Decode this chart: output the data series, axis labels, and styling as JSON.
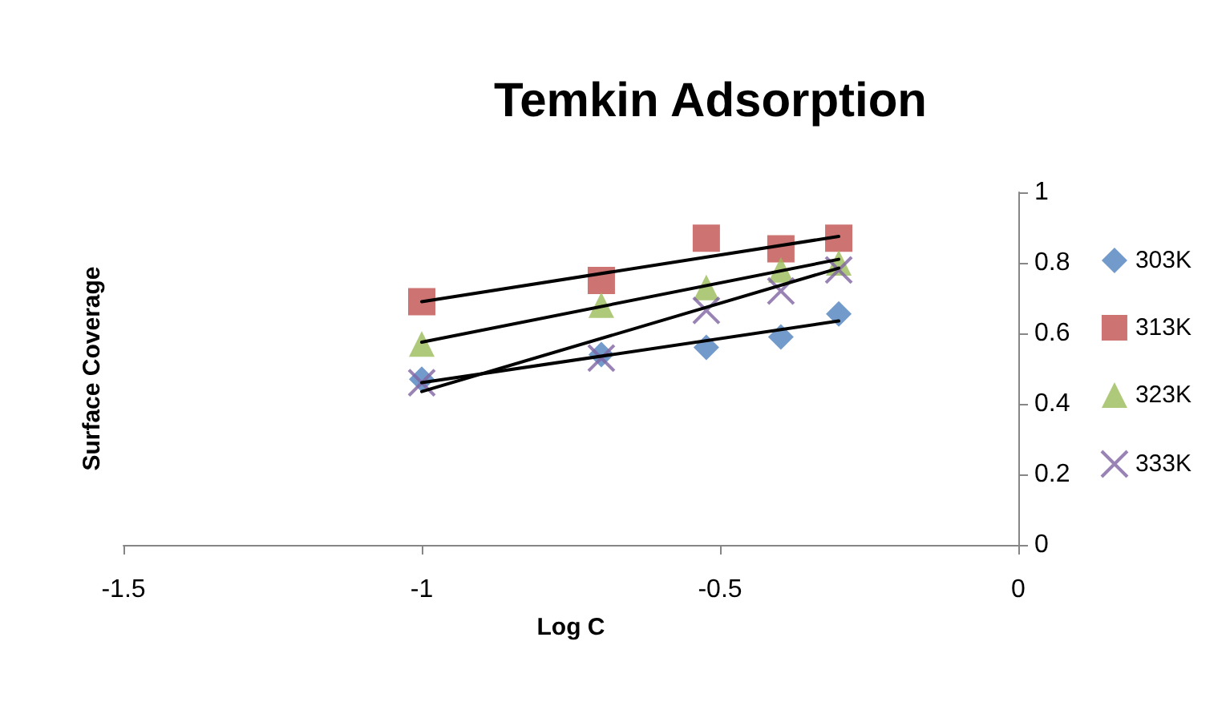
{
  "chart_data": {
    "type": "scatter",
    "title": "Temkin Adsorption",
    "xlabel": "Log C",
    "ylabel": "Surface Coverage",
    "x": [
      -1,
      -0.699,
      -0.523,
      -0.398,
      -0.301
    ],
    "series": [
      {
        "name": "303K",
        "color": "#4f81bd",
        "marker": "diamond",
        "values": [
          0.47,
          0.54,
          0.56,
          0.59,
          0.655
        ]
      },
      {
        "name": "313K",
        "color": "#c0504d",
        "marker": "square",
        "values": [
          0.69,
          0.75,
          0.87,
          0.84,
          0.87
        ]
      },
      {
        "name": "323K",
        "color": "#9bbb59",
        "marker": "triangle",
        "values": [
          0.57,
          0.68,
          0.73,
          0.78,
          0.8
        ]
      },
      {
        "name": "333K",
        "color": "#8064a2",
        "marker": "cross",
        "values": [
          0.46,
          0.53,
          0.665,
          0.72,
          0.78
        ]
      },
      {
        "type": "line",
        "color": "#000000",
        "marker": "none",
        "values": [
          0.46,
          null,
          null,
          null,
          0.635
        ]
      },
      {
        "type": "line",
        "color": "#000000",
        "marker": "none",
        "values": [
          0.69,
          null,
          null,
          null,
          0.875
        ]
      },
      {
        "type": "line",
        "color": "#000000",
        "marker": "none",
        "values": [
          0.575,
          null,
          null,
          null,
          0.81
        ]
      },
      {
        "type": "line",
        "color": "#000000",
        "marker": "none",
        "values": [
          0.435,
          null,
          null,
          null,
          0.785
        ]
      }
    ],
    "xlim": [
      -1.5,
      0
    ],
    "xticks": [
      -1.5,
      -1,
      -0.5,
      0
    ],
    "ylim": [
      0,
      1
    ],
    "yticks": [
      0,
      0.2,
      0.4,
      0.6,
      0.8,
      1
    ],
    "grid": false,
    "legend": "right",
    "line_style": "solid"
  }
}
